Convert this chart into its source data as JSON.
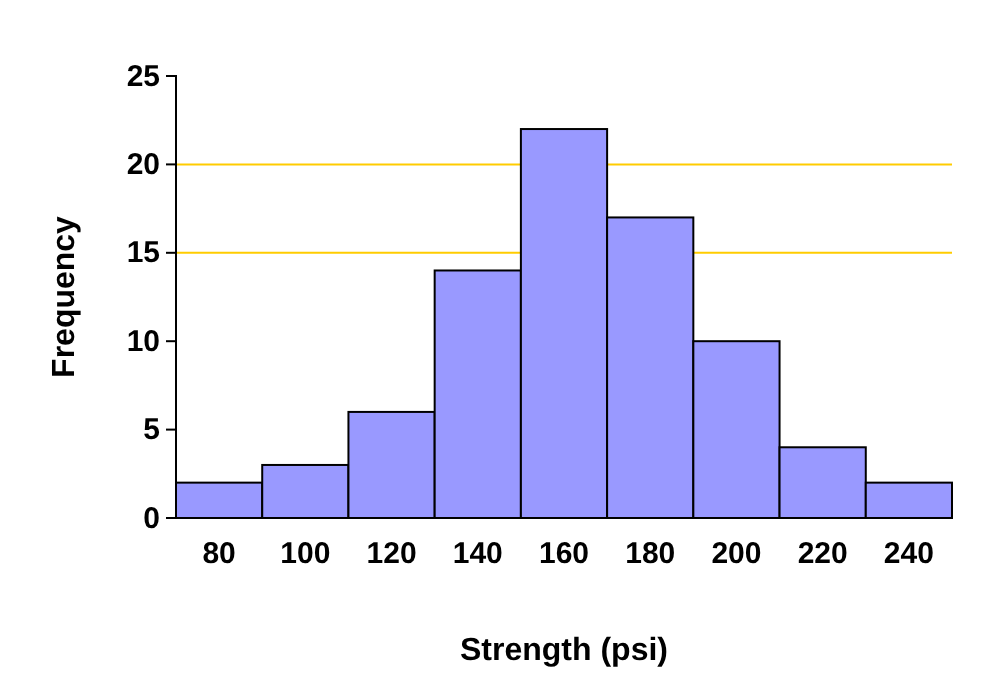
{
  "chart_data": {
    "type": "histogram",
    "xlabel": "Strength (psi)",
    "ylabel": "Frequency",
    "bins": [
      70,
      90,
      110,
      130,
      150,
      170,
      190,
      210,
      230,
      250
    ],
    "values": [
      2,
      3,
      6,
      14,
      22,
      17,
      10,
      4,
      2
    ],
    "color": "#9999ff",
    "xlim": [
      70,
      250
    ],
    "xticks": [
      80,
      100,
      120,
      140,
      160,
      180,
      200,
      220,
      240
    ],
    "ylim": [
      0,
      25
    ],
    "yticks": [
      0,
      5,
      10,
      15,
      20,
      25
    ],
    "ref_lines": [
      {
        "axis": "y",
        "value": 15,
        "color": "#ffcc00"
      },
      {
        "axis": "y",
        "value": 20,
        "color": "#ffcc00"
      }
    ],
    "grid": false
  }
}
